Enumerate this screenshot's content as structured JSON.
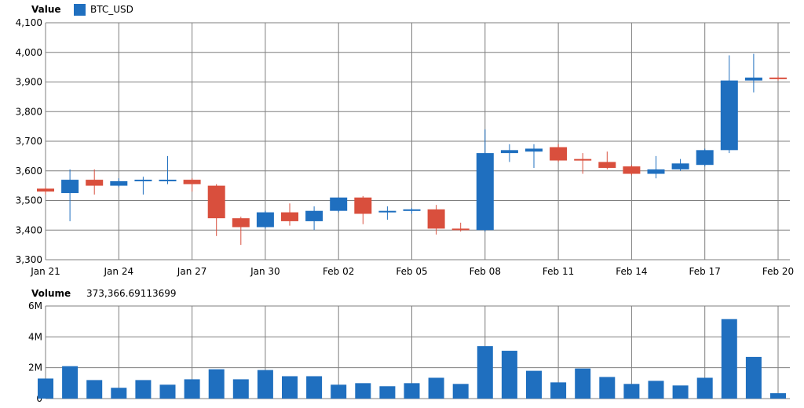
{
  "legend": {
    "series_name": "BTC_USD",
    "series_color": "#1f6fbf"
  },
  "volume_header": {
    "label": "Volume",
    "value": "373,366.69113699"
  },
  "colors": {
    "up": "#1f6fbf",
    "down": "#d94f3d",
    "grid": "#7f7f7f",
    "volume_bar": "#1f6fbf"
  },
  "chart_data": [
    {
      "type": "candlestick",
      "title": "",
      "ylabel": "Value",
      "ylim": [
        3300,
        4100
      ],
      "y_ticks": [
        "3,300",
        "3,400",
        "3,500",
        "3,600",
        "3,700",
        "3,800",
        "3,900",
        "4,000",
        "4,100"
      ],
      "x_tick_labels": [
        "Jan 21",
        "Jan 24",
        "Jan 27",
        "Jan 30",
        "Feb 02",
        "Feb 05",
        "Feb 08",
        "Feb 11",
        "Feb 14",
        "Feb 17",
        "Feb 20"
      ],
      "grid": true,
      "series": [
        {
          "name": "BTC_USD",
          "dates": [
            "Jan 21",
            "Jan 22",
            "Jan 23",
            "Jan 24",
            "Jan 25",
            "Jan 26",
            "Jan 27",
            "Jan 28",
            "Jan 29",
            "Jan 30",
            "Jan 31",
            "Feb 01",
            "Feb 02",
            "Feb 03",
            "Feb 04",
            "Feb 05",
            "Feb 06",
            "Feb 07",
            "Feb 08",
            "Feb 09",
            "Feb 10",
            "Feb 11",
            "Feb 12",
            "Feb 13",
            "Feb 14",
            "Feb 15",
            "Feb 16",
            "Feb 17",
            "Feb 18",
            "Feb 19",
            "Feb 20"
          ],
          "open": [
            3540,
            3525,
            3570,
            3550,
            3565,
            3570,
            3570,
            3550,
            3440,
            3410,
            3460,
            3430,
            3465,
            3510,
            3460,
            3465,
            3470,
            3405,
            3400,
            3660,
            3665,
            3680,
            3640,
            3630,
            3615,
            3590,
            3605,
            3620,
            3670,
            3905,
            3915
          ],
          "high": [
            3545,
            3605,
            3605,
            3575,
            3580,
            3650,
            3575,
            3555,
            3445,
            3465,
            3490,
            3480,
            3510,
            3515,
            3480,
            3475,
            3485,
            3425,
            3740,
            3690,
            3690,
            3690,
            3660,
            3665,
            3620,
            3650,
            3640,
            3675,
            3990,
            3995,
            3920
          ],
          "low": [
            3520,
            3430,
            3520,
            3545,
            3520,
            3555,
            3530,
            3380,
            3350,
            3405,
            3415,
            3400,
            3460,
            3420,
            3435,
            3455,
            3385,
            3395,
            3395,
            3630,
            3610,
            3630,
            3590,
            3605,
            3585,
            3575,
            3600,
            3615,
            3660,
            3865,
            3905
          ],
          "close": [
            3530,
            3570,
            3550,
            3565,
            3570,
            3570,
            3555,
            3440,
            3410,
            3460,
            3430,
            3465,
            3510,
            3455,
            3465,
            3470,
            3405,
            3400,
            3660,
            3670,
            3675,
            3635,
            3635,
            3610,
            3590,
            3605,
            3625,
            3670,
            3905,
            3915,
            3910
          ]
        }
      ]
    },
    {
      "type": "bar",
      "title": "",
      "ylabel": "Volume",
      "ylim": [
        0,
        6000000
      ],
      "y_ticks": [
        "0",
        "2M",
        "4M",
        "6M"
      ],
      "grid": true,
      "series": [
        {
          "name": "Volume",
          "values": [
            1300000,
            2100000,
            1200000,
            700000,
            1200000,
            900000,
            1250000,
            1900000,
            1250000,
            1850000,
            1450000,
            1450000,
            900000,
            1000000,
            800000,
            1000000,
            1350000,
            950000,
            3400000,
            3100000,
            1800000,
            1050000,
            1950000,
            1400000,
            950000,
            1150000,
            850000,
            1350000,
            5150000,
            2700000,
            350000
          ]
        }
      ]
    }
  ]
}
